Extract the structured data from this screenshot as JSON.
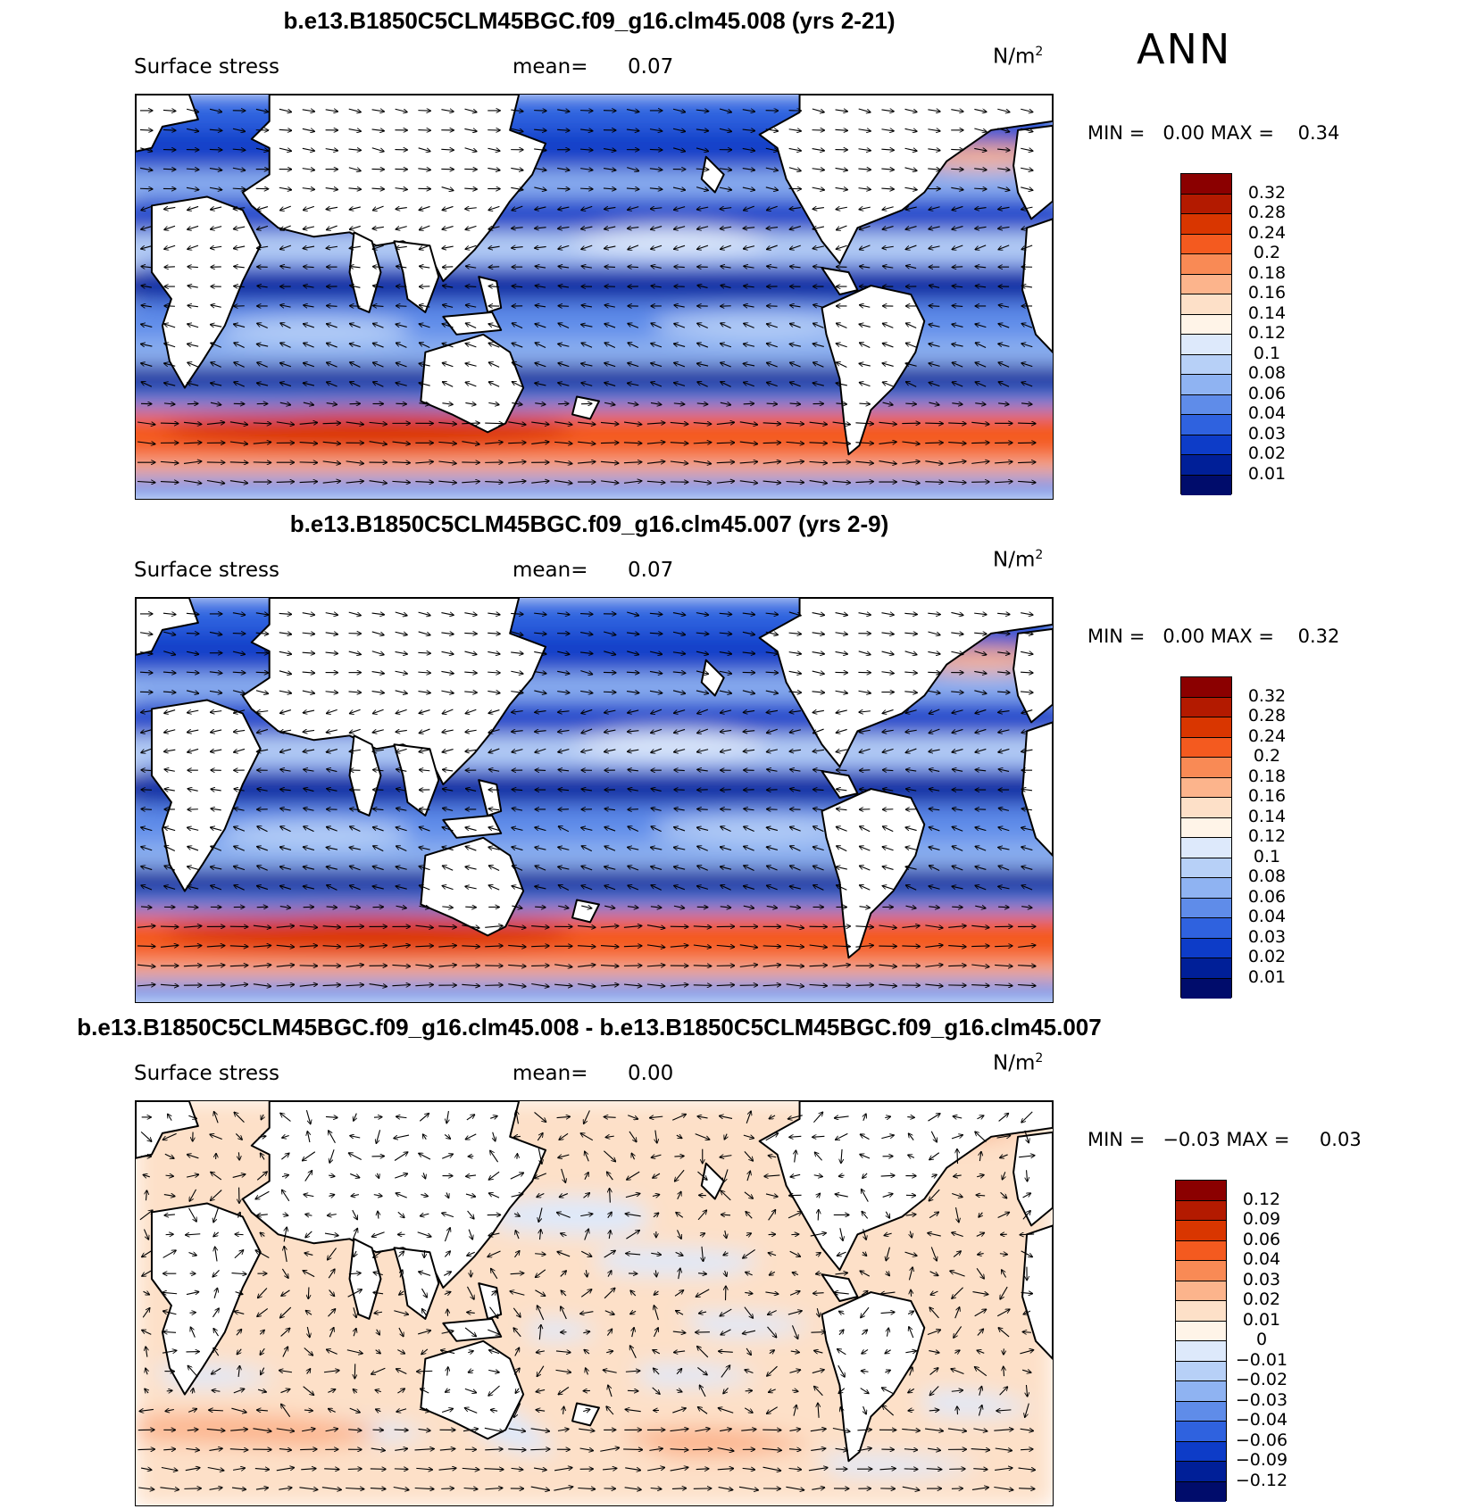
{
  "header": {
    "season": "ANN"
  },
  "panels": [
    {
      "id": "top",
      "title": "b.e13.B1850C5CLM45BGC.f09_g16.clm45.008 (yrs 2-21)",
      "variable": "Surface stress",
      "mean_label": "mean=",
      "mean_value": "0.07",
      "unit_base": "N/m",
      "unit_exp": "2",
      "min_label": "MIN =",
      "min_value": "0.00",
      "max_label": "MAX =",
      "max_value": "0.34",
      "colorbar_labels": [
        "0.32",
        "0.28",
        "0.24",
        "0.2",
        "0.18",
        "0.16",
        "0.14",
        "0.12",
        "0.1",
        "0.08",
        "0.06",
        "0.04",
        "0.03",
        "0.02",
        "0.01"
      ],
      "colorbar_colors": [
        "#8b0000",
        "#b31a00",
        "#d93600",
        "#f45a1f",
        "#f98a55",
        "#fcb48c",
        "#fde0c8",
        "#fff4e8",
        "#dde9fb",
        "#b7d0f7",
        "#8fb3f2",
        "#5f8ce9",
        "#2f62df",
        "#0d3cc8",
        "#001f98",
        "#000c6b"
      ]
    },
    {
      "id": "middle",
      "title": "b.e13.B1850C5CLM45BGC.f09_g16.clm45.007 (yrs 2-9)",
      "variable": "Surface stress",
      "mean_label": "mean=",
      "mean_value": "0.07",
      "unit_base": "N/m",
      "unit_exp": "2",
      "min_label": "MIN =",
      "min_value": "0.00",
      "max_label": "MAX =",
      "max_value": "0.32",
      "colorbar_labels": [
        "0.32",
        "0.28",
        "0.24",
        "0.2",
        "0.18",
        "0.16",
        "0.14",
        "0.12",
        "0.1",
        "0.08",
        "0.06",
        "0.04",
        "0.03",
        "0.02",
        "0.01"
      ],
      "colorbar_colors": [
        "#8b0000",
        "#b31a00",
        "#d93600",
        "#f45a1f",
        "#f98a55",
        "#fcb48c",
        "#fde0c8",
        "#fff4e8",
        "#dde9fb",
        "#b7d0f7",
        "#8fb3f2",
        "#5f8ce9",
        "#2f62df",
        "#0d3cc8",
        "#001f98",
        "#000c6b"
      ]
    },
    {
      "id": "bottom",
      "title": "b.e13.B1850C5CLM45BGC.f09_g16.clm45.008 - b.e13.B1850C5CLM45BGC.f09_g16.clm45.007",
      "variable": "Surface stress",
      "mean_label": "mean=",
      "mean_value": "0.00",
      "unit_base": "N/m",
      "unit_exp": "2",
      "min_label": "MIN =",
      "min_value": "−0.03",
      "max_label": "MAX =",
      "max_value": "0.03",
      "colorbar_labels": [
        "0.12",
        "0.09",
        "0.06",
        "0.04",
        "0.03",
        "0.02",
        "0.01",
        "0",
        "−0.01",
        "−0.02",
        "−0.03",
        "−0.04",
        "−0.06",
        "−0.09",
        "−0.12"
      ],
      "colorbar_colors": [
        "#8b0000",
        "#b31a00",
        "#d93600",
        "#f45a1f",
        "#f98a55",
        "#fcb48c",
        "#fde0c8",
        "#fff4e8",
        "#dde9fb",
        "#b7d0f7",
        "#8fb3f2",
        "#5f8ce9",
        "#2f62df",
        "#0d3cc8",
        "#001f98",
        "#000c6b"
      ]
    }
  ]
}
